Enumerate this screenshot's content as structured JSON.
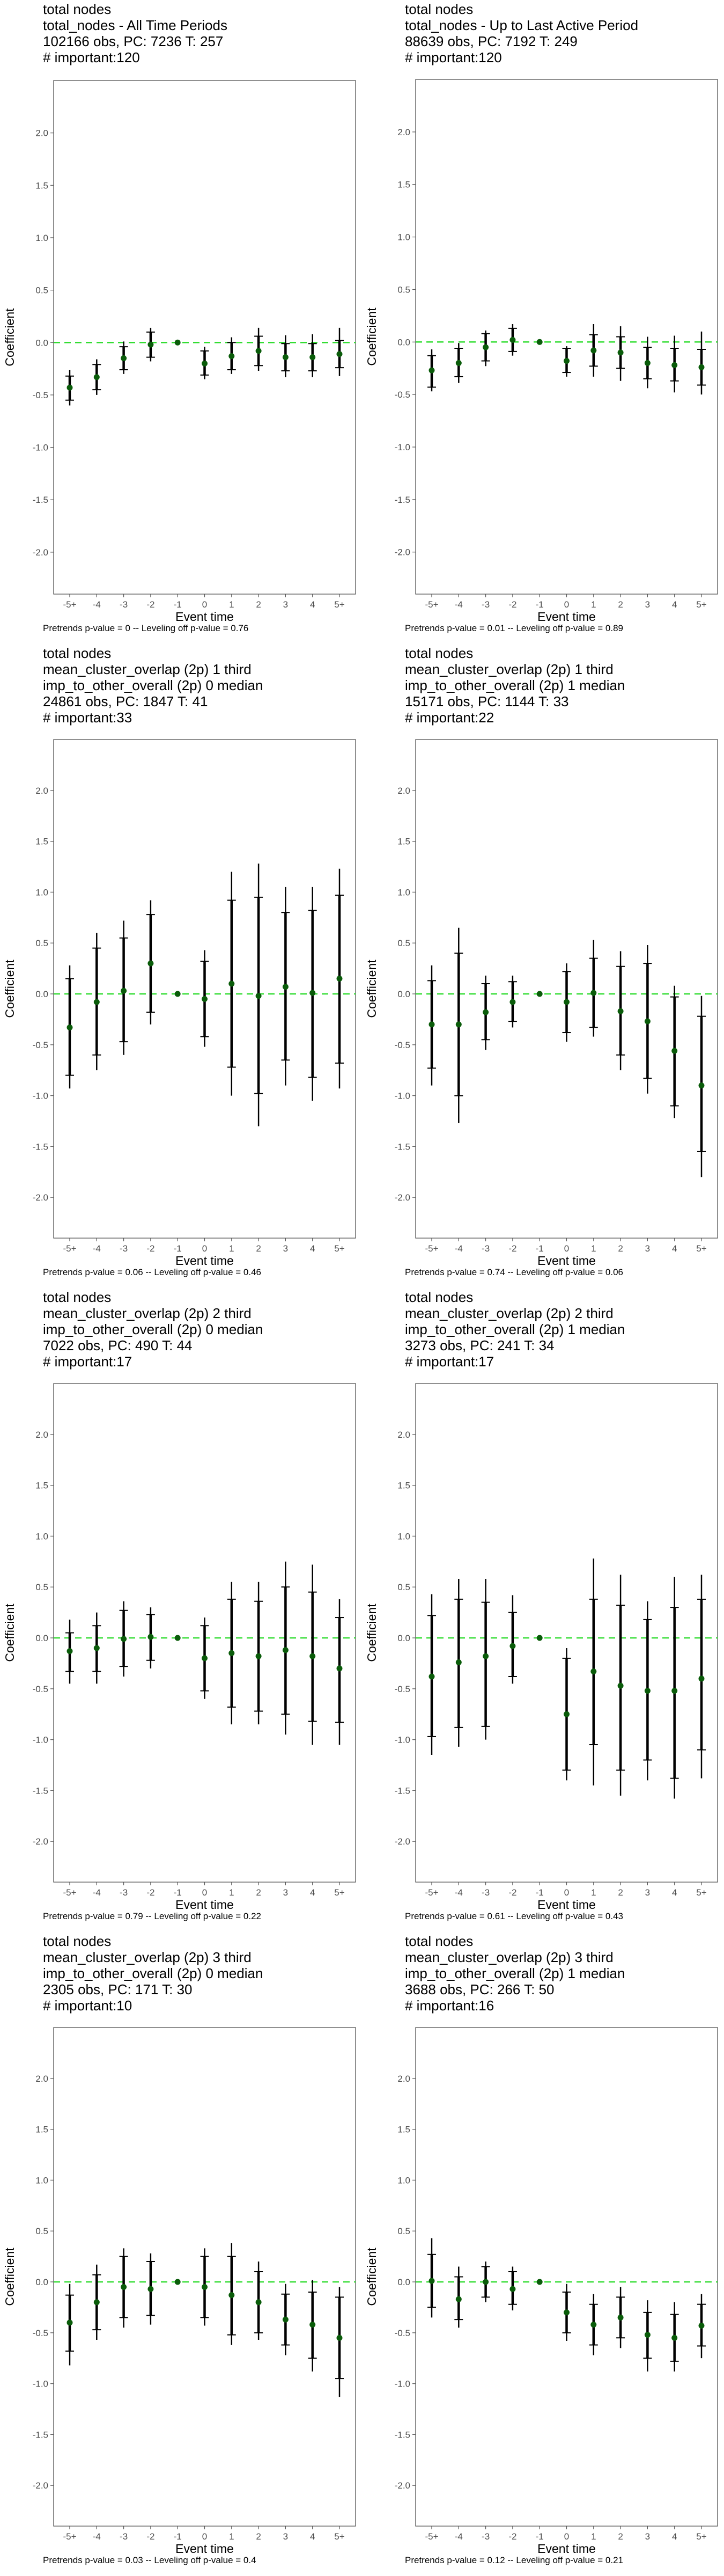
{
  "chart_data": [
    {
      "type": "scatter",
      "title_lines": [
        "total nodes",
        "total_nodes - All Time Periods",
        "102166 obs, PC: 7236 T: 257",
        "# important:120"
      ],
      "xlabel": "Event time",
      "ylabel": "Coefficient",
      "categories": [
        "-5+",
        "-4",
        "-3",
        "-2",
        "-1",
        "0",
        "1",
        "2",
        "3",
        "4",
        "5+"
      ],
      "yticks": [
        "-2.0",
        "-1.5",
        "-1.0",
        "-0.5",
        "0.0",
        "0.5",
        "1.0",
        "1.5",
        "2.0"
      ],
      "ylim": [
        -2.4,
        2.5
      ],
      "estimates": [
        -0.43,
        -0.33,
        -0.15,
        -0.02,
        0,
        -0.2,
        -0.13,
        -0.08,
        -0.14,
        -0.14,
        -0.11
      ],
      "ci90_low": [
        -0.55,
        -0.45,
        -0.26,
        -0.14,
        0,
        -0.31,
        -0.26,
        -0.22,
        -0.27,
        -0.27,
        -0.24
      ],
      "ci90_high": [
        -0.32,
        -0.21,
        -0.04,
        0.1,
        0,
        -0.08,
        0.0,
        0.06,
        -0.01,
        -0.01,
        0.02
      ],
      "ci95_low": [
        -0.6,
        -0.5,
        -0.3,
        -0.18,
        0,
        -0.35,
        -0.3,
        -0.27,
        -0.33,
        -0.33,
        -0.32
      ],
      "ci95_high": [
        -0.26,
        -0.16,
        0.01,
        0.14,
        0,
        -0.04,
        0.05,
        0.14,
        0.07,
        0.08,
        0.14
      ],
      "footer": "Pretrends p-value = 0 -- Leveling off p-value = 0.76",
      "zero_line_color": "#33dd33",
      "point_color": "#0a5c0a"
    },
    {
      "type": "scatter",
      "title_lines": [
        "total nodes",
        "total_nodes - Up to Last Active Period",
        "88639 obs, PC: 7192 T: 249",
        "# important:120"
      ],
      "xlabel": "Event time",
      "ylabel": "Coefficient",
      "categories": [
        "-5+",
        "-4",
        "-3",
        "-2",
        "-1",
        "0",
        "1",
        "2",
        "3",
        "4",
        "5+"
      ],
      "yticks": [
        "-2.0",
        "-1.5",
        "-1.0",
        "-0.5",
        "0.0",
        "0.5",
        "1.0",
        "1.5",
        "2.0"
      ],
      "ylim": [
        -2.4,
        2.5
      ],
      "estimates": [
        -0.27,
        -0.2,
        -0.05,
        0.02,
        0,
        -0.18,
        -0.08,
        -0.1,
        -0.2,
        -0.22,
        -0.24
      ],
      "ci90_low": [
        -0.43,
        -0.33,
        -0.18,
        -0.09,
        0,
        -0.29,
        -0.23,
        -0.25,
        -0.35,
        -0.37,
        -0.41
      ],
      "ci90_high": [
        -0.13,
        -0.06,
        0.08,
        0.13,
        0,
        -0.06,
        0.07,
        0.05,
        -0.05,
        -0.06,
        -0.07
      ],
      "ci95_low": [
        -0.47,
        -0.39,
        -0.23,
        -0.13,
        0,
        -0.33,
        -0.33,
        -0.37,
        -0.44,
        -0.48,
        -0.5
      ],
      "ci95_high": [
        -0.07,
        -0.01,
        0.11,
        0.17,
        0,
        -0.04,
        0.17,
        0.15,
        0.05,
        0.06,
        0.1
      ],
      "footer": "Pretrends p-value = 0.01 -- Leveling off p-value = 0.89",
      "zero_line_color": "#33dd33",
      "point_color": "#0a5c0a"
    },
    {
      "type": "scatter",
      "title_lines": [
        "total nodes",
        "mean_cluster_overlap (2p) 1 third",
        "imp_to_other_overall (2p) 0 median",
        "24861 obs, PC: 1847 T: 41",
        "# important:33"
      ],
      "xlabel": "Event time",
      "ylabel": "Coefficient",
      "categories": [
        "-5+",
        "-4",
        "-3",
        "-2",
        "-1",
        "0",
        "1",
        "2",
        "3",
        "4",
        "5+"
      ],
      "yticks": [
        "-2.0",
        "-1.5",
        "-1.0",
        "-0.5",
        "0.0",
        "0.5",
        "1.0",
        "1.5",
        "2.0"
      ],
      "ylim": [
        -2.4,
        2.5
      ],
      "estimates": [
        -0.33,
        -0.08,
        0.03,
        0.3,
        0,
        -0.05,
        0.1,
        -0.02,
        0.07,
        0.01,
        0.15
      ],
      "ci90_low": [
        -0.8,
        -0.6,
        -0.47,
        -0.18,
        0,
        -0.42,
        -0.72,
        -0.98,
        -0.65,
        -0.82,
        -0.68
      ],
      "ci90_high": [
        0.15,
        0.45,
        0.55,
        0.78,
        0,
        0.32,
        0.92,
        0.95,
        0.8,
        0.82,
        0.97
      ],
      "ci95_low": [
        -0.93,
        -0.75,
        -0.6,
        -0.3,
        0,
        -0.52,
        -1.0,
        -1.3,
        -0.9,
        -1.05,
        -0.93
      ],
      "ci95_high": [
        0.28,
        0.6,
        0.72,
        0.92,
        0,
        0.43,
        1.2,
        1.28,
        1.05,
        1.05,
        1.23
      ],
      "footer": "Pretrends p-value = 0.06 -- Leveling off p-value = 0.46",
      "zero_line_color": "#33dd33",
      "point_color": "#0a5c0a"
    },
    {
      "type": "scatter",
      "title_lines": [
        "total nodes",
        "mean_cluster_overlap (2p) 1 third",
        "imp_to_other_overall (2p) 1 median",
        "15171 obs, PC: 1144 T: 33",
        "# important:22"
      ],
      "xlabel": "Event time",
      "ylabel": "Coefficient",
      "categories": [
        "-5+",
        "-4",
        "-3",
        "-2",
        "-1",
        "0",
        "1",
        "2",
        "3",
        "4",
        "5+"
      ],
      "yticks": [
        "-2.0",
        "-1.5",
        "-1.0",
        "-0.5",
        "0.0",
        "0.5",
        "1.0",
        "1.5",
        "2.0"
      ],
      "ylim": [
        -2.4,
        2.5
      ],
      "estimates": [
        -0.3,
        -0.3,
        -0.18,
        -0.08,
        0,
        -0.08,
        0.01,
        -0.17,
        -0.27,
        -0.56,
        -0.9
      ],
      "ci90_low": [
        -0.73,
        -1.0,
        -0.45,
        -0.27,
        0,
        -0.38,
        -0.33,
        -0.6,
        -0.83,
        -1.1,
        -1.55
      ],
      "ci90_high": [
        0.13,
        0.4,
        0.1,
        0.12,
        0,
        0.22,
        0.35,
        0.27,
        0.3,
        -0.03,
        -0.22
      ],
      "ci95_low": [
        -0.9,
        -1.27,
        -0.55,
        -0.33,
        0,
        -0.47,
        -0.42,
        -0.75,
        -0.98,
        -1.22,
        -1.8
      ],
      "ci95_high": [
        0.28,
        0.65,
        0.18,
        0.18,
        0,
        0.3,
        0.53,
        0.42,
        0.48,
        0.08,
        -0.02
      ],
      "footer": "Pretrends p-value = 0.74 -- Leveling off p-value = 0.06",
      "zero_line_color": "#33dd33",
      "point_color": "#0a5c0a"
    },
    {
      "type": "scatter",
      "title_lines": [
        "total nodes",
        "mean_cluster_overlap (2p) 2 third",
        "imp_to_other_overall (2p) 0 median",
        "7022 obs, PC: 490 T: 44",
        "# important:17"
      ],
      "xlabel": "Event time",
      "ylabel": "Coefficient",
      "categories": [
        "-5+",
        "-4",
        "-3",
        "-2",
        "-1",
        "0",
        "1",
        "2",
        "3",
        "4",
        "5+"
      ],
      "yticks": [
        "-2.0",
        "-1.5",
        "-1.0",
        "-0.5",
        "0.0",
        "0.5",
        "1.0",
        "1.5",
        "2.0"
      ],
      "ylim": [
        -2.4,
        2.5
      ],
      "estimates": [
        -0.13,
        -0.1,
        -0.01,
        0.01,
        0,
        -0.2,
        -0.15,
        -0.18,
        -0.12,
        -0.18,
        -0.3
      ],
      "ci90_low": [
        -0.33,
        -0.33,
        -0.28,
        -0.22,
        0,
        -0.52,
        -0.68,
        -0.72,
        -0.75,
        -0.82,
        -0.83
      ],
      "ci90_high": [
        0.05,
        0.12,
        0.27,
        0.23,
        0,
        0.12,
        0.38,
        0.36,
        0.5,
        0.45,
        0.2
      ],
      "ci95_low": [
        -0.45,
        -0.45,
        -0.38,
        -0.3,
        0,
        -0.6,
        -0.85,
        -0.85,
        -0.95,
        -1.05,
        -1.05
      ],
      "ci95_high": [
        0.18,
        0.25,
        0.36,
        0.3,
        0,
        0.2,
        0.55,
        0.55,
        0.75,
        0.72,
        0.38
      ],
      "footer": "Pretrends p-value = 0.79 -- Leveling off p-value = 0.22",
      "zero_line_color": "#33dd33",
      "point_color": "#0a5c0a"
    },
    {
      "type": "scatter",
      "title_lines": [
        "total nodes",
        "mean_cluster_overlap (2p) 2 third",
        "imp_to_other_overall (2p) 1 median",
        "3273 obs, PC: 241 T: 34",
        "# important:17"
      ],
      "xlabel": "Event time",
      "ylabel": "Coefficient",
      "categories": [
        "-5+",
        "-4",
        "-3",
        "-2",
        "-1",
        "0",
        "1",
        "2",
        "3",
        "4",
        "5+"
      ],
      "yticks": [
        "-2.0",
        "-1.5",
        "-1.0",
        "-0.5",
        "0.0",
        "0.5",
        "1.0",
        "1.5",
        "2.0"
      ],
      "ylim": [
        -2.4,
        2.5
      ],
      "estimates": [
        -0.38,
        -0.24,
        -0.18,
        -0.08,
        0,
        -0.75,
        -0.33,
        -0.47,
        -0.52,
        -0.52,
        -0.4
      ],
      "ci90_low": [
        -0.97,
        -0.88,
        -0.87,
        -0.38,
        0,
        -1.3,
        -1.05,
        -1.3,
        -1.2,
        -1.38,
        -1.1
      ],
      "ci90_high": [
        0.22,
        0.38,
        0.35,
        0.25,
        0,
        -0.2,
        0.38,
        0.32,
        0.18,
        0.3,
        0.38
      ],
      "ci95_low": [
        -1.15,
        -1.07,
        -1.0,
        -0.45,
        0,
        -1.4,
        -1.45,
        -1.55,
        -1.4,
        -1.58,
        -1.38
      ],
      "ci95_high": [
        0.43,
        0.58,
        0.58,
        0.42,
        0,
        -0.1,
        0.78,
        0.62,
        0.36,
        0.6,
        0.62
      ],
      "footer": "Pretrends p-value = 0.61 -- Leveling off p-value = 0.43",
      "zero_line_color": "#33dd33",
      "point_color": "#0a5c0a"
    },
    {
      "type": "scatter",
      "title_lines": [
        "total nodes",
        "mean_cluster_overlap (2p) 3 third",
        "imp_to_other_overall (2p) 0 median",
        "2305 obs, PC: 171 T: 30",
        "# important:10"
      ],
      "xlabel": "Event time",
      "ylabel": "Coefficient",
      "categories": [
        "-5+",
        "-4",
        "-3",
        "-2",
        "-1",
        "0",
        "1",
        "2",
        "3",
        "4",
        "5+"
      ],
      "yticks": [
        "-2.0",
        "-1.5",
        "-1.0",
        "-0.5",
        "0.0",
        "0.5",
        "1.0",
        "1.5",
        "2.0"
      ],
      "ylim": [
        -2.4,
        2.5
      ],
      "estimates": [
        -0.4,
        -0.2,
        -0.05,
        -0.07,
        0,
        -0.05,
        -0.13,
        -0.2,
        -0.37,
        -0.42,
        -0.55
      ],
      "ci90_low": [
        -0.68,
        -0.47,
        -0.35,
        -0.33,
        0,
        -0.35,
        -0.52,
        -0.5,
        -0.62,
        -0.75,
        -0.95
      ],
      "ci90_high": [
        -0.13,
        0.07,
        0.25,
        0.2,
        0,
        0.25,
        0.25,
        0.1,
        -0.12,
        -0.1,
        -0.15
      ],
      "ci95_low": [
        -0.82,
        -0.57,
        -0.45,
        -0.42,
        0,
        -0.43,
        -0.62,
        -0.57,
        -0.72,
        -0.88,
        -1.13
      ],
      "ci95_high": [
        -0.02,
        0.17,
        0.33,
        0.28,
        0,
        0.33,
        0.38,
        0.2,
        -0.02,
        0.02,
        -0.05
      ],
      "footer": "Pretrends p-value = 0.03 -- Leveling off p-value = 0.4",
      "zero_line_color": "#33dd33",
      "point_color": "#0a5c0a"
    },
    {
      "type": "scatter",
      "title_lines": [
        "total nodes",
        "mean_cluster_overlap (2p) 3 third",
        "imp_to_other_overall (2p) 1 median",
        "3688 obs, PC: 266 T: 50",
        "# important:16"
      ],
      "xlabel": "Event time",
      "ylabel": "Coefficient",
      "categories": [
        "-5+",
        "-4",
        "-3",
        "-2",
        "-1",
        "0",
        "1",
        "2",
        "3",
        "4",
        "5+"
      ],
      "yticks": [
        "-2.0",
        "-1.5",
        "-1.0",
        "-0.5",
        "0.0",
        "0.5",
        "1.0",
        "1.5",
        "2.0"
      ],
      "ylim": [
        -2.4,
        2.5
      ],
      "estimates": [
        0.01,
        -0.17,
        0.0,
        -0.07,
        0,
        -0.3,
        -0.42,
        -0.35,
        -0.52,
        -0.55,
        -0.43
      ],
      "ci90_low": [
        -0.25,
        -0.37,
        -0.15,
        -0.22,
        0,
        -0.5,
        -0.62,
        -0.55,
        -0.75,
        -0.78,
        -0.63
      ],
      "ci90_high": [
        0.27,
        0.05,
        0.15,
        0.1,
        0,
        -0.1,
        -0.22,
        -0.15,
        -0.3,
        -0.32,
        -0.22
      ],
      "ci95_low": [
        -0.35,
        -0.45,
        -0.2,
        -0.28,
        0,
        -0.58,
        -0.72,
        -0.65,
        -0.88,
        -0.88,
        -0.75
      ],
      "ci95_high": [
        0.43,
        0.15,
        0.2,
        0.15,
        0,
        -0.02,
        -0.12,
        -0.05,
        -0.18,
        -0.2,
        -0.12
      ],
      "footer": "Pretrends p-value = 0.12 -- Leveling off p-value = 0.21",
      "zero_line_color": "#33dd33",
      "point_color": "#0a5c0a"
    }
  ]
}
